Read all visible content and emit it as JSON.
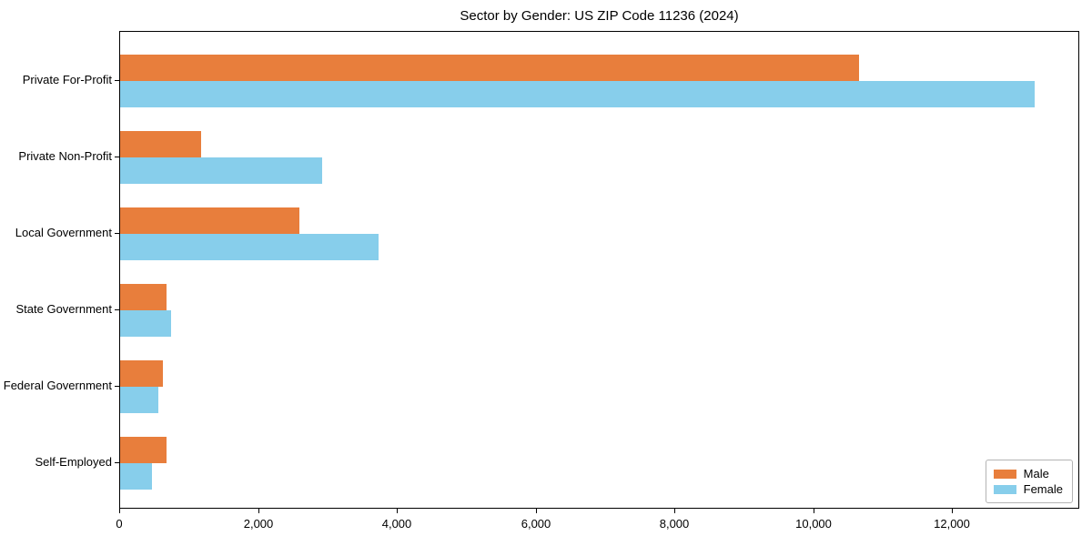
{
  "chart_data": {
    "type": "bar",
    "orientation": "horizontal",
    "title": "Sector by Gender: US ZIP Code 11236 (2024)",
    "categories": [
      "Private For-Profit",
      "Private Non-Profit",
      "Local Government",
      "State Government",
      "Federal Government",
      "Self-Employed"
    ],
    "series": [
      {
        "name": "Male",
        "color": "#e87e3c",
        "values": [
          10650,
          1170,
          2580,
          665,
          610,
          665
        ]
      },
      {
        "name": "Female",
        "color": "#87ceeb",
        "values": [
          13180,
          2910,
          3730,
          730,
          555,
          460
        ]
      }
    ],
    "xlabel": "",
    "ylabel": "",
    "xlim": [
      0,
      13836
    ],
    "x_ticks": [
      0,
      2000,
      4000,
      6000,
      8000,
      10000,
      12000
    ],
    "x_tick_labels": [
      "0",
      "2,000",
      "4,000",
      "6,000",
      "8,000",
      "10,000",
      "12,000"
    ],
    "grid": false,
    "legend": {
      "position": "lower right",
      "entries": [
        "Male",
        "Female"
      ]
    }
  }
}
